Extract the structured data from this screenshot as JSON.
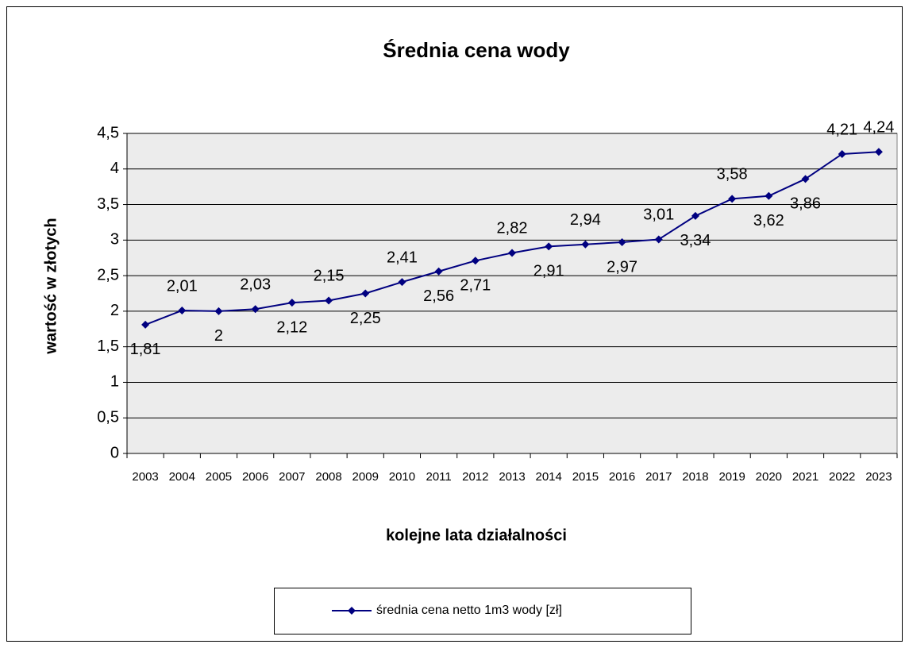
{
  "chart_data": {
    "type": "line",
    "title": "Średnia cena wody",
    "x_label": "kolejne lata działalności",
    "y_label": "wartość w złotych",
    "categories": [
      "2003",
      "2004",
      "2005",
      "2006",
      "2007",
      "2008",
      "2009",
      "2010",
      "2011",
      "2012",
      "2013",
      "2014",
      "2015",
      "2016",
      "2017",
      "2018",
      "2019",
      "2020",
      "2021",
      "2022",
      "2023"
    ],
    "series": [
      {
        "name": "średnia cena netto 1m3 wody [zł]",
        "color": "#000080",
        "values": [
          1.81,
          2.01,
          2.0,
          2.03,
          2.12,
          2.15,
          2.25,
          2.41,
          2.56,
          2.71,
          2.82,
          2.91,
          2.94,
          2.97,
          3.01,
          3.34,
          3.58,
          3.62,
          3.86,
          4.21,
          4.24
        ],
        "value_labels": [
          "1,81",
          "2,01",
          "2",
          "2,03",
          "2,12",
          "2,15",
          "2,25",
          "2,41",
          "2,56",
          "2,71",
          "2,82",
          "2,91",
          "2,94",
          "2,97",
          "3,01",
          "3,34",
          "3,58",
          "3,62",
          "3,86",
          "4,21",
          "4,24"
        ]
      }
    ],
    "ylim": [
      0,
      4.5
    ],
    "yticks": [
      0,
      {
        "value": 0.5,
        "label": "0,5"
      },
      1,
      {
        "value": 1.5,
        "label": "1,5"
      },
      2,
      {
        "value": 2.5,
        "label": "2,5"
      },
      3,
      {
        "value": 3.5,
        "label": "3,5"
      },
      4,
      {
        "value": 4.5,
        "label": "4,5"
      }
    ],
    "grid": true,
    "legend": "bottom"
  }
}
